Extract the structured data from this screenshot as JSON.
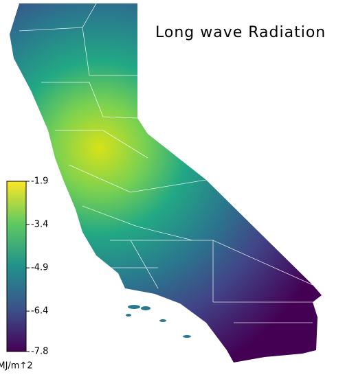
{
  "title": "Long wave Radiation",
  "colorbar": {
    "lim": [
      -7.8,
      -1.9
    ],
    "ticks": [
      -1.9,
      -3.4,
      -4.9,
      -6.4,
      -7.8
    ],
    "unit_label": "MJ/m↑2"
  }
}
